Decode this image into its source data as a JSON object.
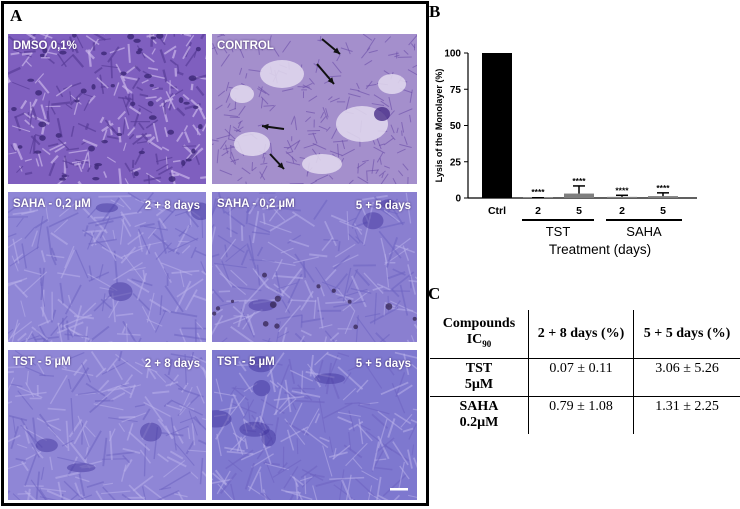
{
  "panel_a": {
    "letter": "A",
    "images": [
      {
        "label": "DMSO 0,1%",
        "days": "",
        "pattern": "dense-cells"
      },
      {
        "label": "CONTROL",
        "days": "",
        "pattern": "lysed-plaques"
      },
      {
        "label": "SAHA - 0,2 µM",
        "days": "2 + 8 days",
        "pattern": "smooth-monolayer"
      },
      {
        "label": "SAHA - 0,2 µM",
        "days": "5 + 5 days",
        "pattern": "smooth-monolayer-spots"
      },
      {
        "label": "TST -  5 µM",
        "days": "2 + 8 days",
        "pattern": "smooth-monolayer"
      },
      {
        "label": "TST -  5 µM",
        "days": "5 + 5 days",
        "pattern": "smooth-monolayer-dark"
      }
    ]
  },
  "panel_b": {
    "letter": "B"
  },
  "panel_c": {
    "letter": "C",
    "headers": [
      "Compounds IC₉₀",
      "2 + 8 days (%)",
      "5 + 5 days (%)"
    ],
    "header_line1": "Compounds",
    "header_line2": "IC",
    "header_sub": "90",
    "rows": [
      {
        "compound_line1": "TST",
        "compound_line2": "5µM",
        "val1": "0.07 ± 0.11",
        "val2": "3.06 ± 5.26"
      },
      {
        "compound_line1": "SAHA",
        "compound_line2": "0.2µM",
        "val1": "0.79 ± 1.08",
        "val2": "1.31 ± 2.25"
      }
    ]
  },
  "chart_data": {
    "type": "bar",
    "ylabel": "Lysis of the Monolayer (%)",
    "xlabel": "Treatment (days)",
    "ylim": [
      0,
      100
    ],
    "yticks": [
      0,
      25,
      50,
      75,
      100
    ],
    "categories": [
      "Ctrl",
      "2",
      "5",
      "2",
      "5"
    ],
    "groups": [
      {
        "label": "TST",
        "categories": [
          "2",
          "5"
        ]
      },
      {
        "label": "SAHA",
        "categories": [
          "2",
          "5"
        ]
      }
    ],
    "values": [
      100,
      0.07,
      3.06,
      0.79,
      1.31
    ],
    "errors": [
      0,
      0.11,
      5.26,
      1.08,
      2.25
    ],
    "annotations": [
      "",
      "****",
      "****",
      "****",
      "****"
    ],
    "colors": [
      "#000000",
      "#7f7f7f",
      "#7f7f7f",
      "#7f7f7f",
      "#7f7f7f"
    ]
  }
}
